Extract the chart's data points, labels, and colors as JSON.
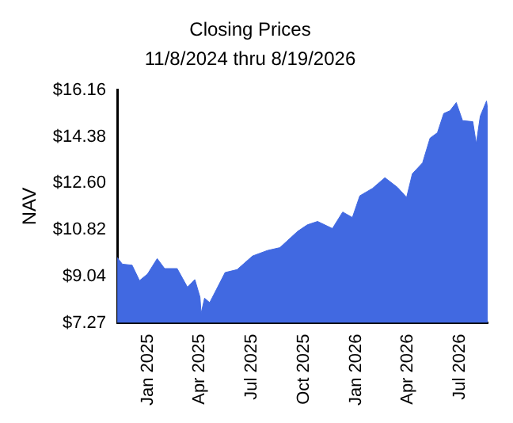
{
  "chart_data": {
    "type": "area",
    "title": "Closing Prices",
    "subtitle": "11/8/2024 thru 8/19/2026",
    "ylabel": "NAV",
    "x": [
      "2024-11-08",
      "2024-11-17",
      "2024-12-04",
      "2024-12-17",
      "2024-12-31",
      "2025-01-17",
      "2025-01-30",
      "2025-02-21",
      "2025-03-11",
      "2025-03-24",
      "2025-04-02",
      "2025-04-04",
      "2025-04-10",
      "2025-04-19",
      "2025-05-16",
      "2025-06-06",
      "2025-07-03",
      "2025-07-29",
      "2025-08-20",
      "2025-09-20",
      "2025-10-07",
      "2025-10-25",
      "2025-11-20",
      "2025-12-08",
      "2025-12-25",
      "2026-01-07",
      "2026-01-29",
      "2026-02-20",
      "2026-03-14",
      "2026-03-30",
      "2026-04-09",
      "2026-04-27",
      "2026-05-10",
      "2026-05-23",
      "2026-06-03",
      "2026-06-14",
      "2026-06-25",
      "2026-07-06",
      "2026-07-24",
      "2026-07-30",
      "2026-08-06",
      "2026-08-17",
      "2026-08-19"
    ],
    "series": [
      {
        "color": "#4169e1",
        "values": [
          9.76,
          9.51,
          9.47,
          8.88,
          9.13,
          9.72,
          9.34,
          9.34,
          8.63,
          8.92,
          8.25,
          7.63,
          8.21,
          8.04,
          9.19,
          9.3,
          9.82,
          10.03,
          10.14,
          10.76,
          11.01,
          11.14,
          10.87,
          11.5,
          11.29,
          12.12,
          12.4,
          12.81,
          12.44,
          12.06,
          12.96,
          13.38,
          14.32,
          14.53,
          15.26,
          15.37,
          15.68,
          14.99,
          14.95,
          14.11,
          15.16,
          15.74,
          15.41
        ]
      }
    ],
    "xlim": [
      "2024-11-08",
      "2026-08-19"
    ],
    "xticks": [
      {
        "value": "2025-01-01",
        "label": "Jan 2025"
      },
      {
        "value": "2025-04-01",
        "label": "Apr 2025"
      },
      {
        "value": "2025-07-01",
        "label": "Jul 2025"
      },
      {
        "value": "2025-10-01",
        "label": "Oct 2025"
      },
      {
        "value": "2026-01-01",
        "label": "Jan 2026"
      },
      {
        "value": "2026-04-01",
        "label": "Apr 2026"
      },
      {
        "value": "2026-07-01",
        "label": "Jul 2026"
      }
    ],
    "ylim": [
      7.27,
      16.16
    ],
    "yticks": [
      {
        "value": 7.27,
        "label": "$7.27"
      },
      {
        "value": 9.04,
        "label": "$9.04"
      },
      {
        "value": 10.82,
        "label": "$10.82"
      },
      {
        "value": 12.6,
        "label": "$12.60"
      },
      {
        "value": 14.38,
        "label": "$14.38"
      },
      {
        "value": 16.16,
        "label": "$16.16"
      }
    ],
    "grid": false,
    "legend": false
  }
}
